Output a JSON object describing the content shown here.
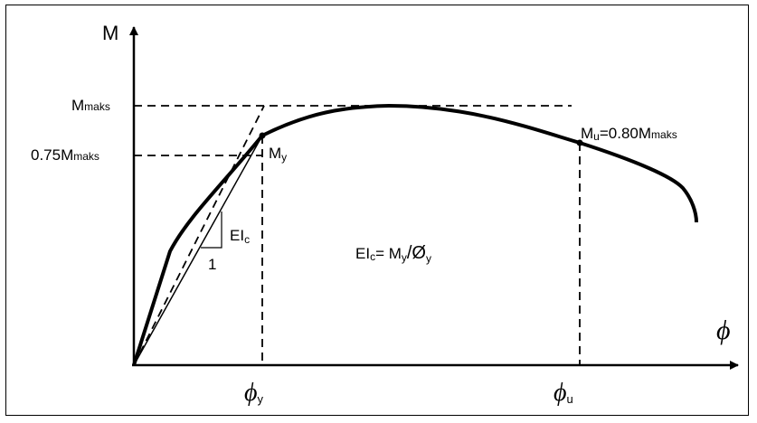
{
  "axes": {
    "y_label": "M",
    "x_label": "ϕ"
  },
  "levels": {
    "m_max": {
      "main": "M",
      "sub": "maks"
    },
    "m_075": {
      "prefix": "0.75M",
      "sub": "maks"
    }
  },
  "points": {
    "yield": {
      "main": "M",
      "sub": "y"
    },
    "ultimate": {
      "main": "M",
      "sub": "u",
      "mid": "=0.80M",
      "sub2": "maks"
    }
  },
  "x_ticks": {
    "phi_y": {
      "main": "ϕ",
      "sub": "y"
    },
    "phi_u": {
      "main": "ϕ",
      "sub": "u"
    }
  },
  "slope": {
    "rise": {
      "main": "EI",
      "sub": "c"
    },
    "run": "1"
  },
  "equation": {
    "lhs": "EI",
    "lhs_sub": "c",
    "mid": "= M",
    "mid_sub": "y",
    "div": "/Ø",
    "div_sub": "y"
  },
  "colors": {
    "ink": "#000000",
    "background": "#ffffff"
  }
}
